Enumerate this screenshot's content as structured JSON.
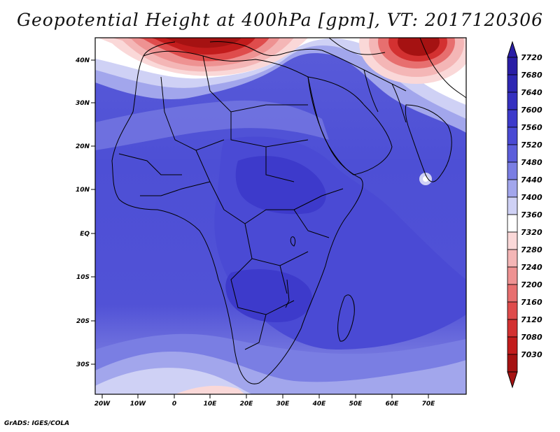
{
  "title": "Geopotential Height at 400hPa [gpm], VT: 2017120306",
  "credit": "GrADS: IGES/COLA",
  "lat_labels": [
    "40N",
    "30N",
    "20N",
    "10N",
    "EQ",
    "10S",
    "20S",
    "30S"
  ],
  "lon_labels": [
    "20W",
    "10W",
    "0",
    "10E",
    "20E",
    "30E",
    "40E",
    "50E",
    "60E",
    "70E"
  ],
  "colorbar": {
    "levels": [
      "7720",
      "7680",
      "7640",
      "7600",
      "7560",
      "7520",
      "7480",
      "7440",
      "7400",
      "7360",
      "7320",
      "7280",
      "7240",
      "7200",
      "7160",
      "7120",
      "7080",
      "7030"
    ],
    "colors": [
      "#2a1ea6",
      "#2e27b3",
      "#3530c0",
      "#3d3acb",
      "#4a4ad4",
      "#5c5edb",
      "#7a7ee3",
      "#a2a6ec",
      "#cfd1f5",
      "#ffffff",
      "#fad8d8",
      "#f4b6b6",
      "#ee9292",
      "#e76f6f",
      "#df4c4c",
      "#d33131",
      "#c21c1c",
      "#a51212"
    ]
  }
}
